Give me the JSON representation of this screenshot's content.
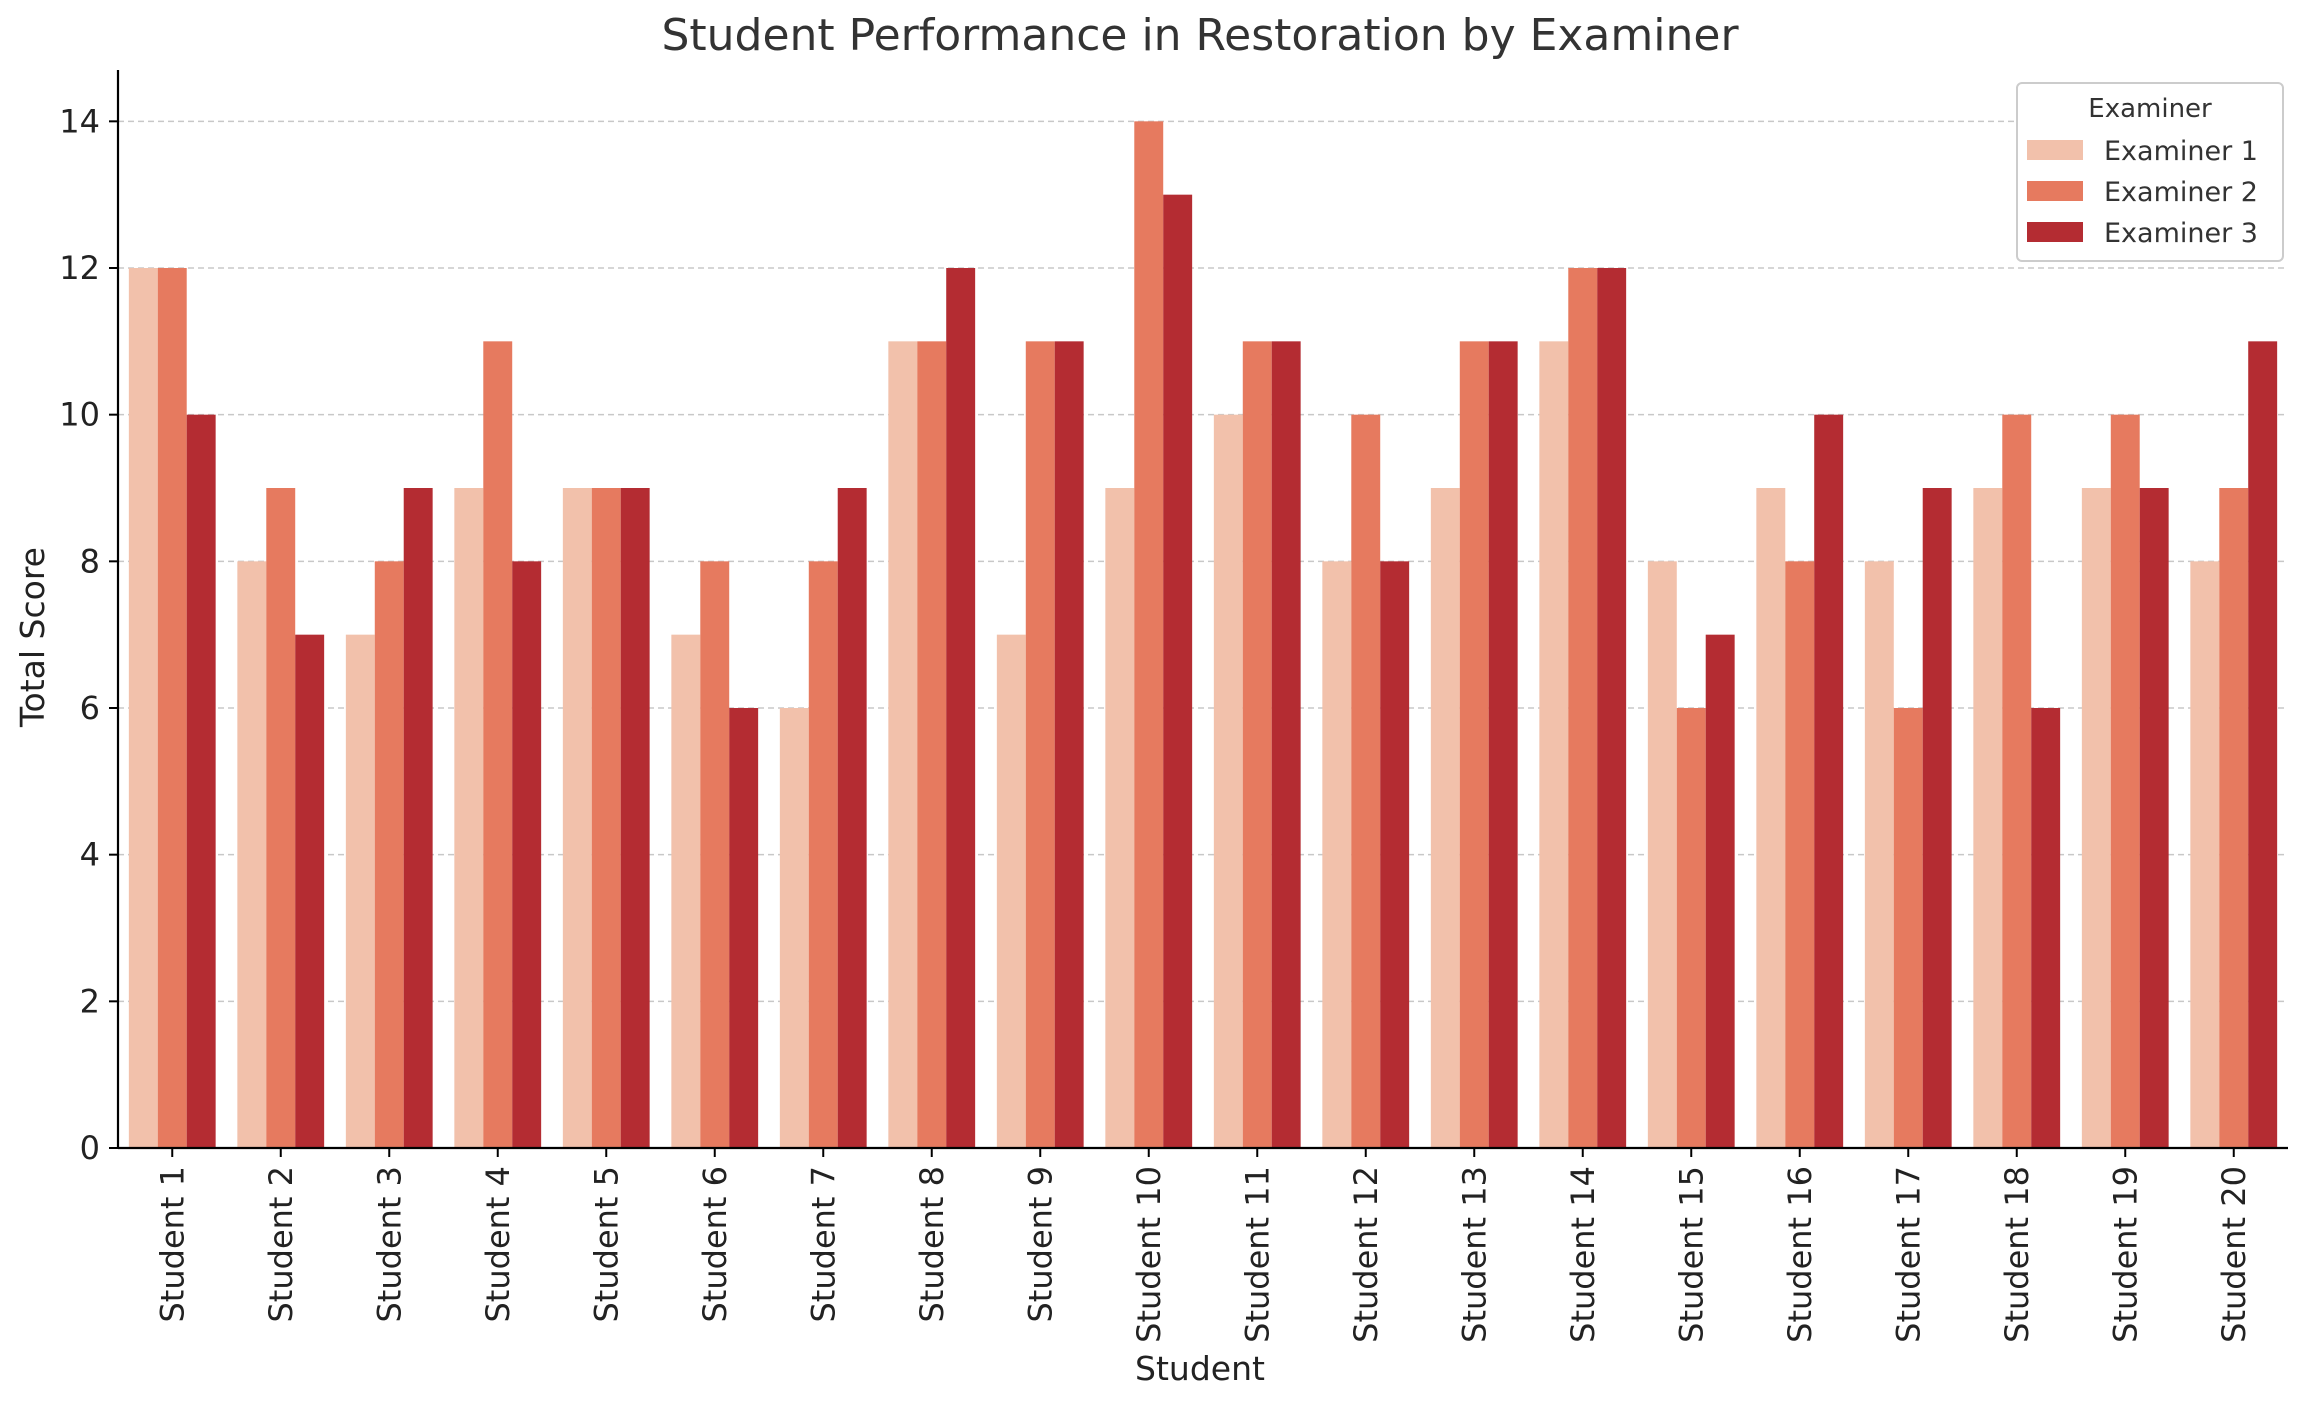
{
  "chart_data": {
    "type": "bar",
    "title": "Student Performance in Restoration by Examiner",
    "xlabel": "Student",
    "ylabel": "Total Score",
    "ylim": [
      0,
      14.7
    ],
    "yticks": [
      0,
      2,
      4,
      6,
      8,
      10,
      12,
      14
    ],
    "grid": "horizontal-dashed",
    "legend_title": "Examiner",
    "legend_position": "top-right",
    "categories": [
      "Student 1",
      "Student 2",
      "Student 3",
      "Student 4",
      "Student 5",
      "Student 6",
      "Student 7",
      "Student 8",
      "Student 9",
      "Student 10",
      "Student 11",
      "Student 12",
      "Student 13",
      "Student 14",
      "Student 15",
      "Student 16",
      "Student 17",
      "Student 18",
      "Student 19",
      "Student 20"
    ],
    "series": [
      {
        "name": "Examiner 1",
        "color": "#f2c1ab",
        "values": [
          12,
          8,
          7,
          9,
          9,
          7,
          6,
          11,
          7,
          9,
          10,
          8,
          9,
          11,
          8,
          9,
          8,
          9,
          9,
          8
        ]
      },
      {
        "name": "Examiner 2",
        "color": "#e67a5f",
        "values": [
          12,
          9,
          8,
          11,
          9,
          8,
          8,
          11,
          11,
          14,
          11,
          10,
          11,
          12,
          6,
          8,
          6,
          10,
          10,
          9
        ]
      },
      {
        "name": "Examiner 3",
        "color": "#b42c32",
        "values": [
          10,
          7,
          9,
          8,
          9,
          6,
          9,
          12,
          11,
          13,
          11,
          8,
          11,
          12,
          7,
          10,
          9,
          6,
          9,
          11
        ]
      }
    ]
  }
}
